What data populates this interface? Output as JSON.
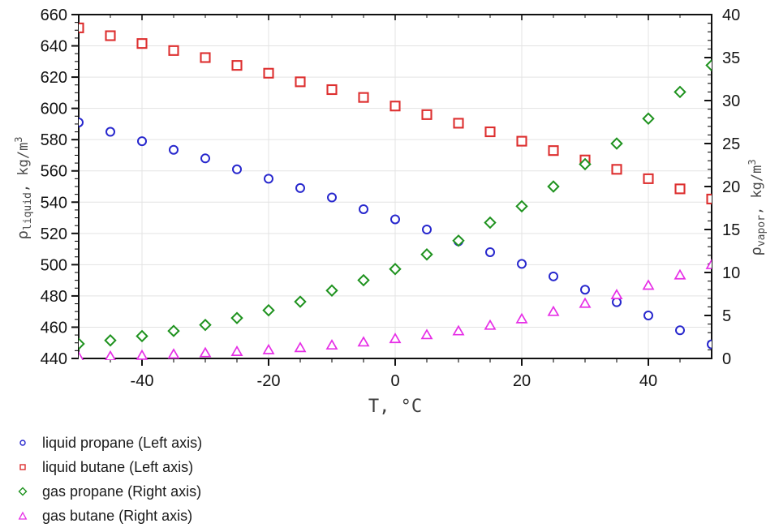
{
  "figure": {
    "background": "#ffffff",
    "axis_color": "#111111",
    "grid_color": "#e3e3e3",
    "tick_label_color": "#141414",
    "axis_title_color": "#4a4a4a"
  },
  "chart_data": {
    "type": "scatter",
    "title": "",
    "xlabel": "T, °C",
    "x_axis": {
      "min": -50,
      "max": 50,
      "major_step": 20,
      "minor_step": 5,
      "tick_values": [
        -40,
        -20,
        0,
        20,
        40
      ],
      "tick_labels": [
        "-40",
        "-20",
        "0",
        "20",
        "40"
      ]
    },
    "left_axis": {
      "symbol": "ρ",
      "subscript": "liquid",
      "rest": ", kg/m",
      "superscript": "3",
      "min": 440,
      "max": 660,
      "major_step": 20,
      "minor_step": 5,
      "tick_values": [
        440,
        460,
        480,
        500,
        520,
        540,
        560,
        580,
        600,
        620,
        640,
        660
      ],
      "tick_labels": [
        "440",
        "460",
        "480",
        "500",
        "520",
        "540",
        "560",
        "580",
        "600",
        "620",
        "640",
        "660"
      ]
    },
    "right_axis": {
      "symbol": "ρ",
      "subscript": "vapor",
      "rest": ", kg/m",
      "superscript": "3",
      "min": 0,
      "max": 40,
      "major_step": 5,
      "minor_step": 1,
      "tick_values": [
        0,
        5,
        10,
        15,
        20,
        25,
        30,
        35,
        40
      ],
      "tick_labels": [
        "0",
        "5",
        "10",
        "15",
        "20",
        "25",
        "30",
        "35",
        "40"
      ]
    },
    "grid": {
      "show": true,
      "vertical_at": [
        -40,
        -20,
        0,
        20,
        40
      ],
      "horizontal_at": [
        460,
        480,
        500,
        520,
        540,
        560,
        580,
        600,
        620,
        640
      ]
    },
    "legend_position": "bottom-left",
    "x": [
      -50,
      -45,
      -40,
      -35,
      -30,
      -25,
      -20,
      -15,
      -10,
      -5,
      0,
      5,
      10,
      15,
      20,
      25,
      30,
      35,
      40,
      45,
      50
    ],
    "series": [
      {
        "name": "liquid propane (Left axis)",
        "axis": "left",
        "marker": "circle",
        "color": "#2727cd",
        "values": [
          591,
          585,
          579,
          573.5,
          568,
          561,
          555,
          549,
          543,
          535.5,
          529,
          522.5,
          515,
          508,
          500.5,
          492.5,
          484,
          476,
          467.5,
          458,
          449
        ]
      },
      {
        "name": "liquid butane (Left axis)",
        "axis": "left",
        "marker": "square",
        "color": "#dd2f2f",
        "values": [
          651.5,
          646.5,
          641.5,
          637,
          632.5,
          627.5,
          622.5,
          617,
          612,
          607,
          601.5,
          596,
          590.5,
          585,
          579,
          573,
          567,
          561,
          555,
          548.5,
          542
        ]
      },
      {
        "name": "gas propane (Right axis)",
        "axis": "right",
        "marker": "diamond",
        "color": "#1e921e",
        "values": [
          1.7,
          2.1,
          2.6,
          3.2,
          3.9,
          4.7,
          5.6,
          6.6,
          7.9,
          9.1,
          10.4,
          12.1,
          13.7,
          15.8,
          17.7,
          20,
          22.6,
          25,
          27.9,
          31,
          34.1
        ]
      },
      {
        "name": "gas butane (Right axis)",
        "axis": "right",
        "marker": "triangle",
        "color": "#e62ee6",
        "values": [
          0.15,
          0.25,
          0.35,
          0.5,
          0.65,
          0.8,
          1.0,
          1.25,
          1.55,
          1.9,
          2.3,
          2.75,
          3.2,
          3.85,
          4.6,
          5.45,
          6.4,
          7.4,
          8.5,
          9.7,
          10.9
        ]
      }
    ]
  }
}
